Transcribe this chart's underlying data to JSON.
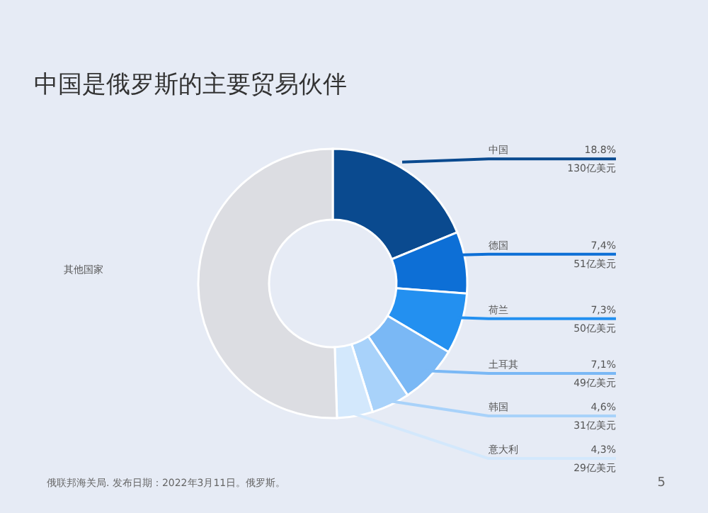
{
  "chart_data": {
    "type": "donut",
    "title": "中国是俄罗斯的主要贸易伙伴",
    "categories": [
      "中国",
      "德国",
      "荷兰",
      "土耳其",
      "韩国",
      "意大利",
      "其他国家"
    ],
    "values": [
      18.8,
      7.4,
      7.3,
      7.1,
      4.6,
      4.3,
      50.5
    ],
    "colors": [
      "#0a4a8f",
      "#0d6fd6",
      "#2390f0",
      "#7ab8f5",
      "#a8d2fa",
      "#d3e8fc",
      "#dcdde2"
    ],
    "value_labels": [
      "18.8%",
      "7,4%",
      "7,3%",
      "7,1%",
      "4,6%",
      "4,3%",
      null
    ],
    "annotations": [
      {
        "text": "130亿美元",
        "x": "中国"
      },
      {
        "text": "51亿美元",
        "x": "德国"
      },
      {
        "text": "50亿美元",
        "x": "荷兰"
      },
      {
        "text": "49亿美元",
        "x": "土耳其"
      },
      {
        "text": "31亿美元",
        "x": "韩国"
      },
      {
        "text": "29亿美元",
        "x": "意大利"
      },
      "俄联邦海关局. 发布日期：2022年3月11日。俄罗斯。",
      "5"
    ]
  }
}
